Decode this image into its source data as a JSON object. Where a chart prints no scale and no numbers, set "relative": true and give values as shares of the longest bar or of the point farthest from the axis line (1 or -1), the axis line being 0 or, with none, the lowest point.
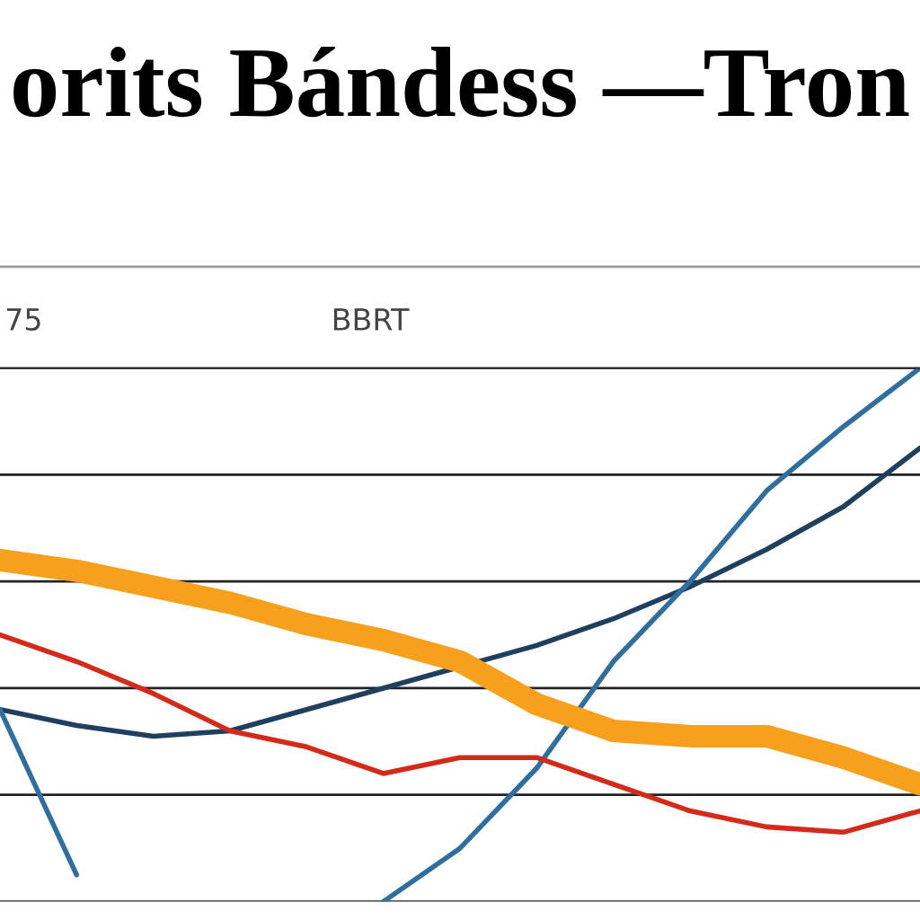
{
  "chart_data": {
    "type": "line",
    "title": "orits Bándess —Tron",
    "annotations": [
      "75",
      "BBRT"
    ],
    "relative": true,
    "grid": "y",
    "legend": false,
    "marker": "none",
    "line_style": "solid",
    "categories": [
      null,
      null,
      null,
      null,
      null,
      null,
      null,
      null,
      null,
      null,
      null,
      null,
      null
    ],
    "series": [
      {
        "color": "#1f3f5f",
        "values": [
          0.36,
          0.33,
          0.31,
          0.32,
          0.36,
          0.4,
          0.44,
          0.48,
          0.53,
          0.59,
          0.66,
          0.74,
          0.85
        ]
      },
      {
        "color": "#2f6f9f",
        "values": [
          0.36,
          0.05,
          null,
          null,
          null,
          0,
          0.1,
          0.25,
          0.45,
          0.6,
          0.77,
          0.89,
          1.0
        ]
      },
      {
        "color": "#d42a1a",
        "values": [
          0.5,
          0.45,
          0.39,
          0.32,
          0.29,
          0.24,
          0.27,
          0.27,
          0.22,
          0.17,
          0.14,
          0.13,
          0.17
        ]
      },
      {
        "color": "#f7a01e",
        "values": [
          0.64,
          0.62,
          0.59,
          0.56,
          0.52,
          0.49,
          0.45,
          0.37,
          0.32,
          0.31,
          0.31,
          0.27,
          0.22
        ]
      }
    ]
  }
}
